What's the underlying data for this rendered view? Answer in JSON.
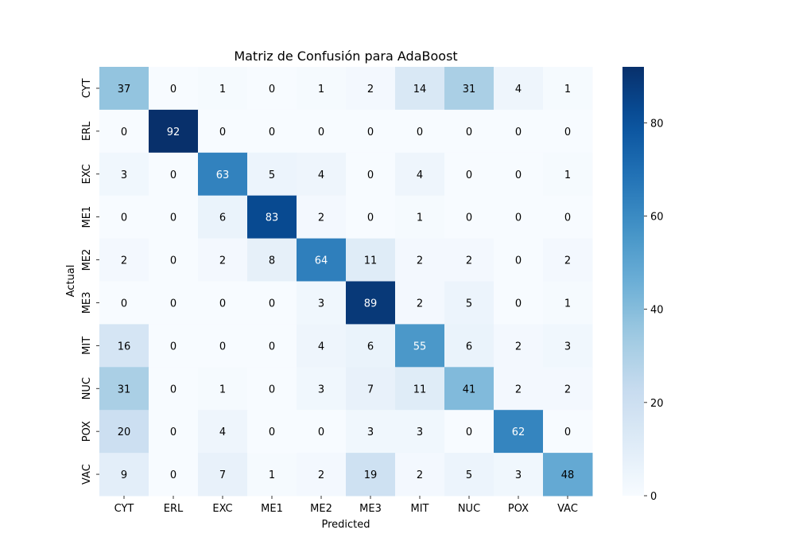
{
  "chart_data": {
    "type": "heatmap",
    "title": "Matriz de Confusión para AdaBoost",
    "xlabel": "Predicted",
    "ylabel": "Actual",
    "x_categories": [
      "CYT",
      "ERL",
      "EXC",
      "ME1",
      "ME2",
      "ME3",
      "MIT",
      "NUC",
      "POX",
      "VAC"
    ],
    "y_categories": [
      "CYT",
      "ERL",
      "EXC",
      "ME1",
      "ME2",
      "ME3",
      "MIT",
      "NUC",
      "POX",
      "VAC"
    ],
    "values": [
      [
        37,
        0,
        1,
        0,
        1,
        2,
        14,
        31,
        4,
        1
      ],
      [
        0,
        92,
        0,
        0,
        0,
        0,
        0,
        0,
        0,
        0
      ],
      [
        3,
        0,
        63,
        5,
        4,
        0,
        4,
        0,
        0,
        1
      ],
      [
        0,
        0,
        6,
        83,
        2,
        0,
        1,
        0,
        0,
        0
      ],
      [
        2,
        0,
        2,
        8,
        64,
        11,
        2,
        2,
        0,
        2
      ],
      [
        0,
        0,
        0,
        0,
        3,
        89,
        2,
        5,
        0,
        1
      ],
      [
        16,
        0,
        0,
        0,
        4,
        6,
        55,
        6,
        2,
        3
      ],
      [
        31,
        0,
        1,
        0,
        3,
        7,
        11,
        41,
        2,
        2
      ],
      [
        20,
        0,
        4,
        0,
        0,
        3,
        3,
        0,
        62,
        0
      ],
      [
        9,
        0,
        7,
        1,
        2,
        19,
        2,
        5,
        3,
        48
      ]
    ],
    "colormap": "Blues",
    "vmin": 0,
    "vmax": 92,
    "colorbar_ticks": [
      0,
      20,
      40,
      60,
      80
    ],
    "annotations": true,
    "grid": false
  }
}
